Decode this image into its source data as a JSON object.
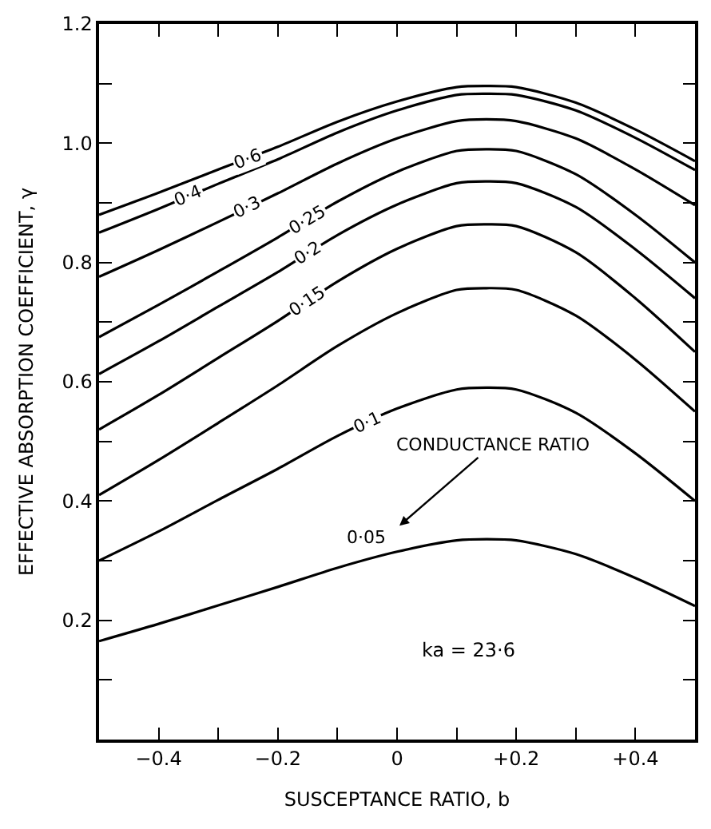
{
  "chart_data": {
    "type": "line",
    "xlabel": "SUSCEPTANCE RATIO, b",
    "ylabel": "EFFECTIVE ABSORPTION COEFFICIENT, γ",
    "x": [
      -0.5,
      -0.4,
      -0.3,
      -0.2,
      -0.1,
      0,
      0.1,
      0.15,
      0.2,
      0.3,
      0.4,
      0.5
    ],
    "series": [
      {
        "name": "0·6",
        "color": "#000000",
        "values": [
          0.88,
          0.917,
          0.956,
          0.994,
          1.036,
          1.07,
          1.094,
          1.096,
          1.094,
          1.068,
          1.023,
          0.97
        ]
      },
      {
        "name": "0·4",
        "color": "#000000",
        "values": [
          0.85,
          0.89,
          0.932,
          0.973,
          1.018,
          1.055,
          1.081,
          1.083,
          1.081,
          1.055,
          1.009,
          0.955
        ]
      },
      {
        "name": "0·3",
        "color": "#000000",
        "values": [
          0.776,
          0.821,
          0.868,
          0.916,
          0.966,
          1.008,
          1.037,
          1.04,
          1.037,
          1.008,
          0.956,
          0.896
        ]
      },
      {
        "name": "0·25",
        "color": "#000000",
        "values": [
          0.675,
          0.729,
          0.785,
          0.842,
          0.902,
          0.952,
          0.987,
          0.99,
          0.987,
          0.948,
          0.88,
          0.8
        ]
      },
      {
        "name": "0·2",
        "color": "#000000",
        "values": [
          0.613,
          0.668,
          0.726,
          0.784,
          0.846,
          0.897,
          0.933,
          0.936,
          0.933,
          0.893,
          0.822,
          0.74
        ]
      },
      {
        "name": "0·15",
        "color": "#000000",
        "values": [
          0.52,
          0.578,
          0.64,
          0.702,
          0.768,
          0.823,
          0.861,
          0.864,
          0.861,
          0.817,
          0.74,
          0.65
        ]
      },
      {
        "color": "#000000",
        "values": [
          0.41,
          0.469,
          0.531,
          0.594,
          0.66,
          0.715,
          0.754,
          0.757,
          0.754,
          0.711,
          0.637,
          0.55
        ]
      },
      {
        "name": "0·1",
        "color": "#000000",
        "values": [
          0.3,
          0.349,
          0.402,
          0.454,
          0.509,
          0.555,
          0.587,
          0.59,
          0.587,
          0.548,
          0.48,
          0.4
        ]
      },
      {
        "name": "0·05",
        "color": "#000000",
        "values": [
          0.165,
          0.194,
          0.225,
          0.256,
          0.288,
          0.315,
          0.334,
          0.336,
          0.334,
          0.311,
          0.271,
          0.224
        ]
      }
    ],
    "xlim": [
      -0.5,
      0.5
    ],
    "xticks": [
      -0.4,
      {
        "value": -0.3,
        "label": null
      },
      -0.2,
      {
        "value": -0.1,
        "label": null
      },
      0,
      {
        "value": 0.1,
        "label": null
      },
      {
        "value": 0.2,
        "label": "+0.2"
      },
      {
        "value": 0.3,
        "label": null
      },
      {
        "value": 0.4,
        "label": "+0.4"
      }
    ],
    "ylim": [
      0,
      1.2
    ],
    "yticks": [
      {
        "value": 0.1,
        "label": null
      },
      0.2,
      {
        "value": 0.3,
        "label": null
      },
      0.4,
      {
        "value": 0.5,
        "label": null
      },
      0.6,
      {
        "value": 0.7,
        "label": null
      },
      0.8,
      {
        "value": 0.9,
        "label": null
      },
      {
        "value": 1.0,
        "label": "1.0"
      },
      {
        "value": 1.1,
        "label": null
      },
      1.2
    ],
    "annotations": [
      "CONDUCTANCE RATIO",
      "ka = 23·6"
    ],
    "legend": false,
    "marker": "none",
    "line_style": "solid"
  }
}
